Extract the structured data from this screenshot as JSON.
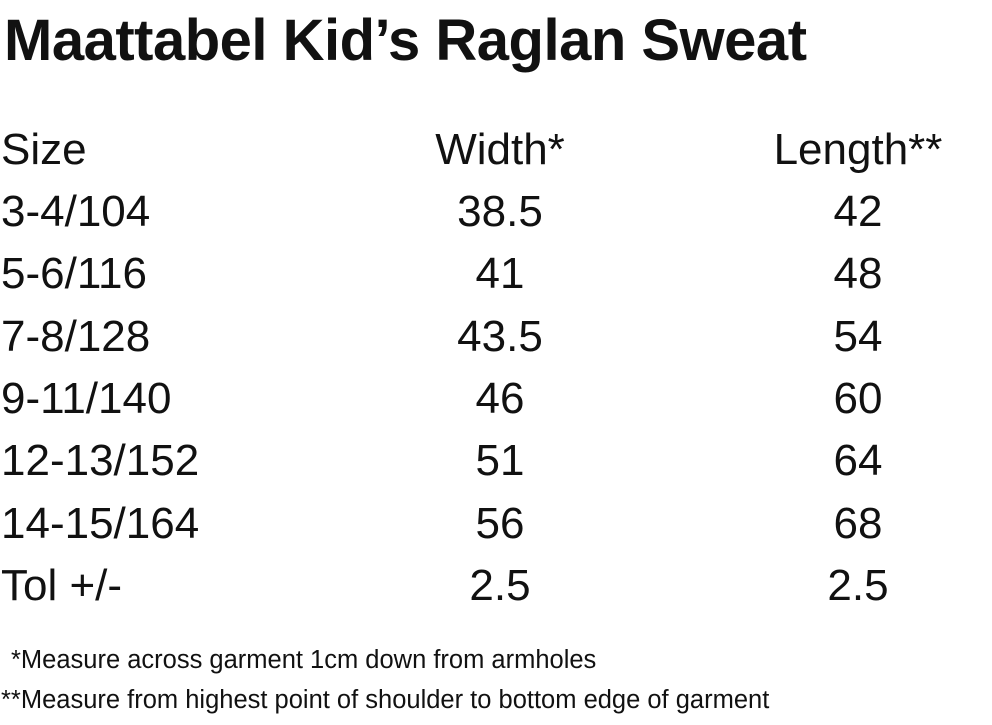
{
  "title": "Maattabel Kid’s Raglan Sweat",
  "table": {
    "header": [
      "Size",
      "Width*",
      "Length**"
    ],
    "rows": [
      [
        "3-4/104",
        38.5,
        42
      ],
      [
        "5-6/116",
        41,
        48
      ],
      [
        "7-8/128",
        43.5,
        54
      ],
      [
        "9-11/140",
        46,
        60
      ],
      [
        "12-13/152",
        51,
        64
      ],
      [
        "14-15/164",
        56,
        68
      ],
      [
        "Tol +/-",
        2.5,
        2.5
      ]
    ]
  },
  "notes": [
    "*Measure across garment 1cm down from armholes",
    "**Measure from highest point of shoulder to bottom edge of garment"
  ]
}
